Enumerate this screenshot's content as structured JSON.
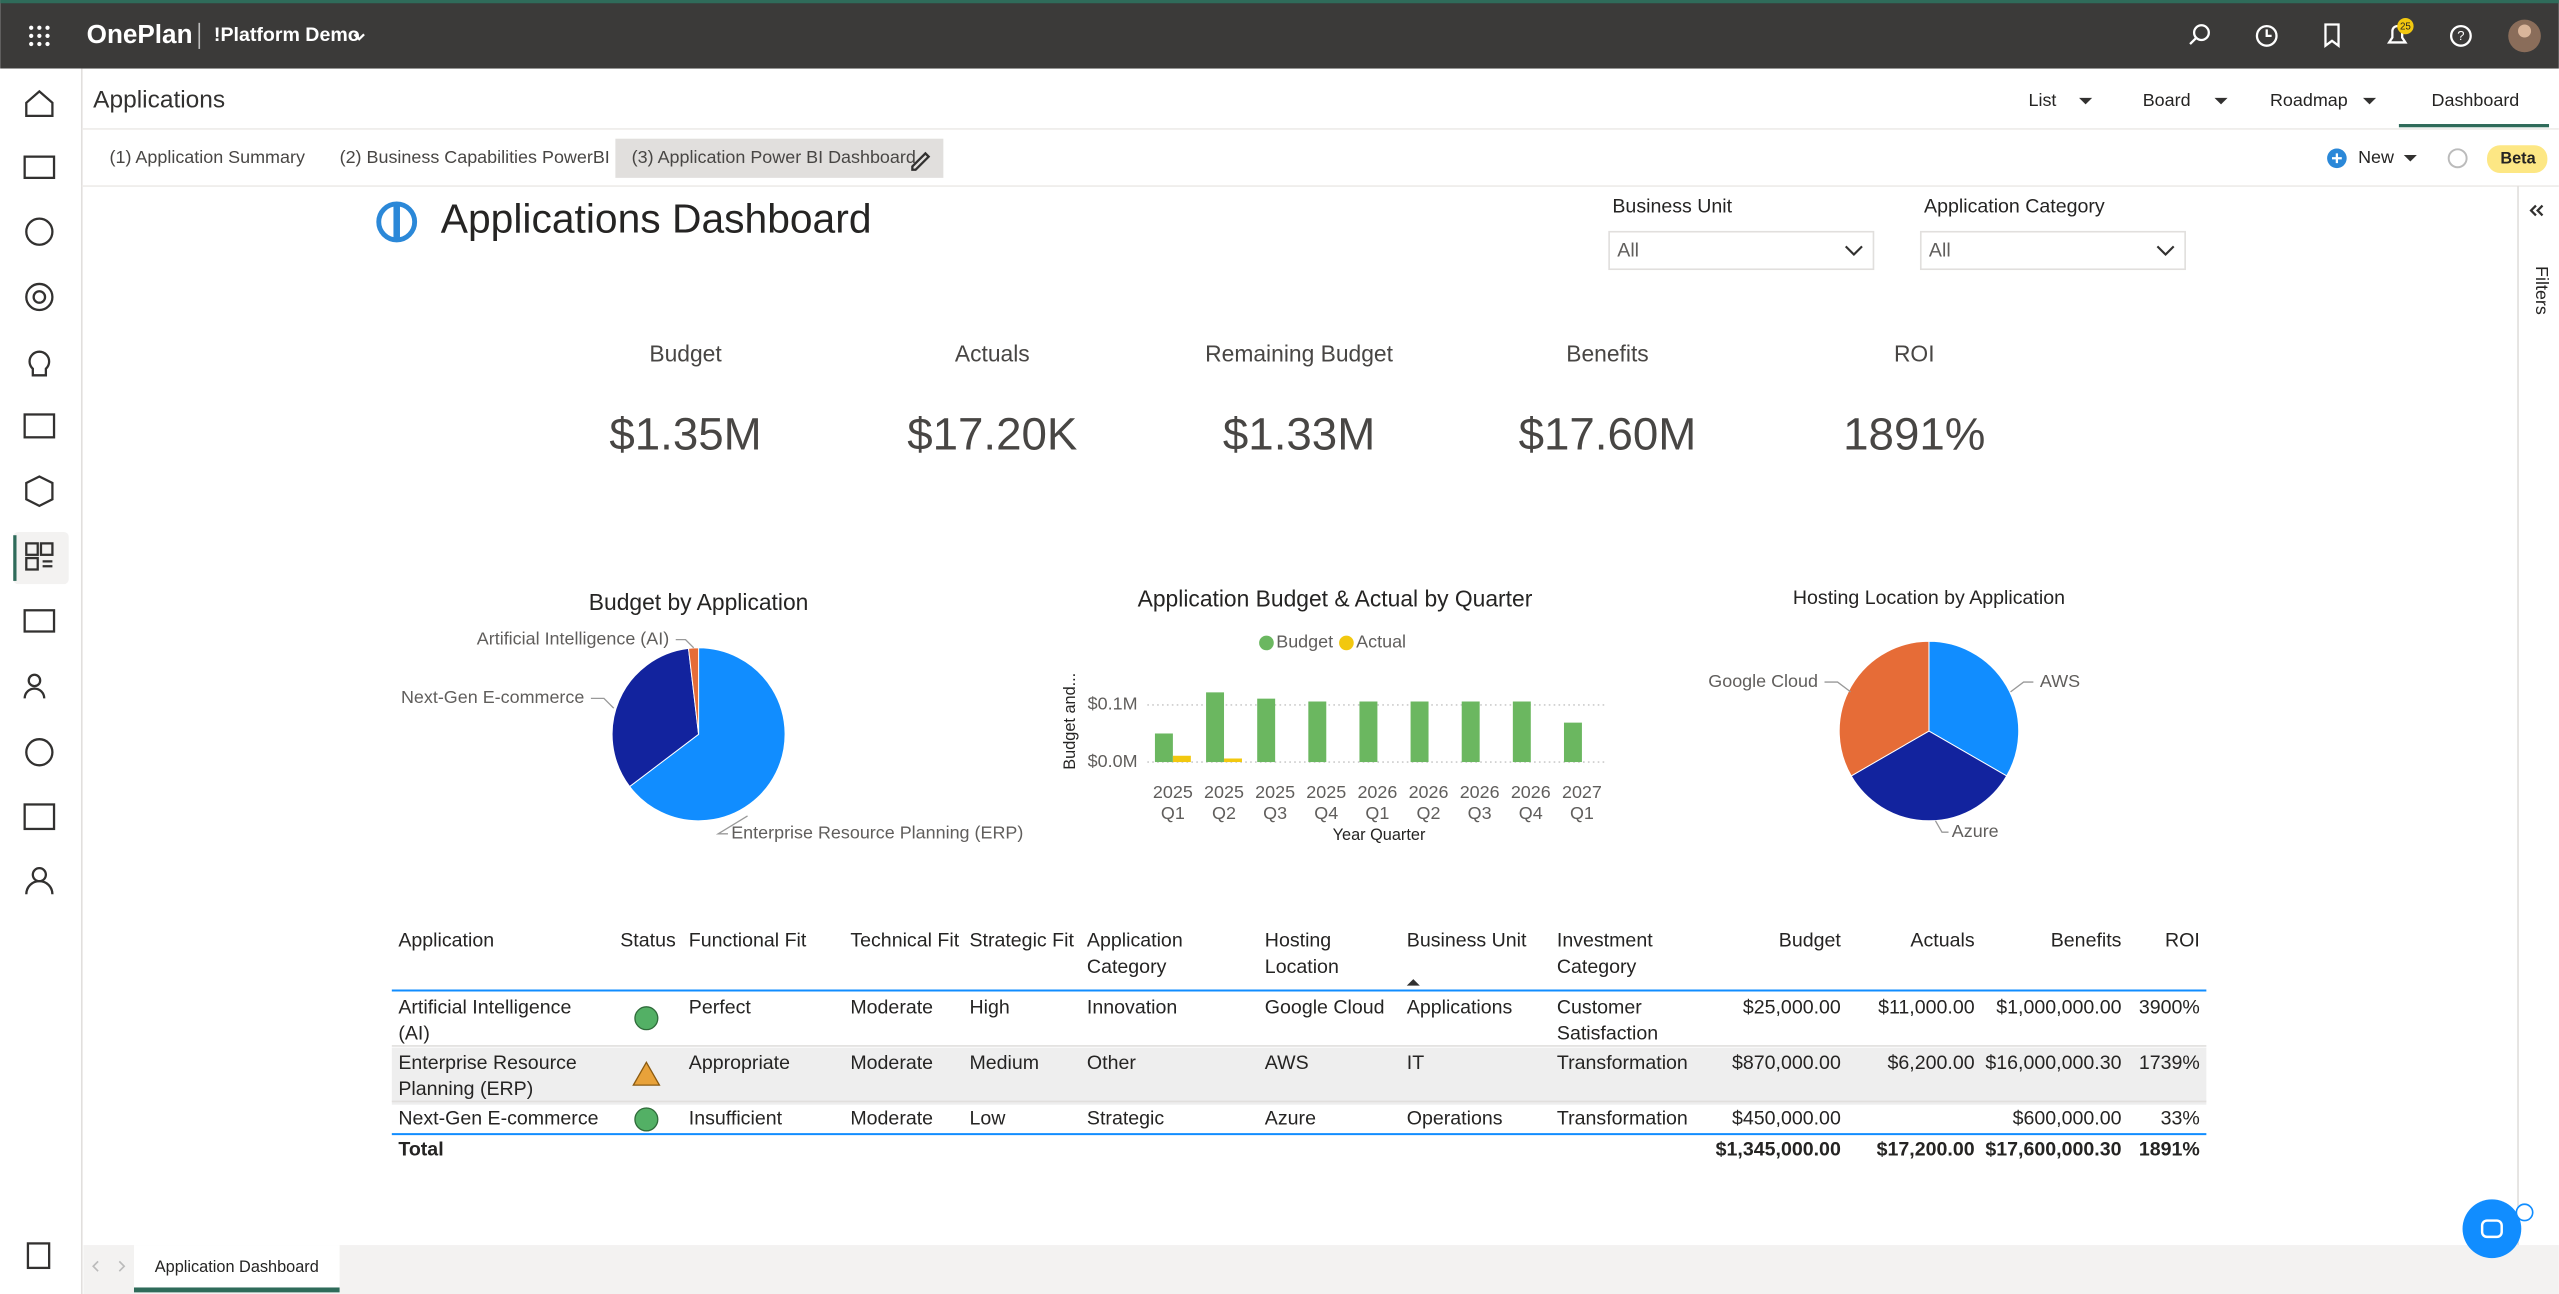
{
  "app_bar": {
    "brand": "OnePlan",
    "workspace": "!Platform Demo",
    "notification_badge": "25"
  },
  "header": {
    "title": "Applications",
    "views": [
      "List",
      "Board",
      "Roadmap",
      "Dashboard"
    ]
  },
  "tabs": [
    "(1) Application Summary",
    "(2) Business Capabilities PowerBI",
    "(3) Application Power BI Dashboard"
  ],
  "toolbar": {
    "new": "New",
    "beta": "Beta"
  },
  "dashboard": {
    "title": "Applications Dashboard",
    "filters": [
      {
        "label": "Business Unit",
        "value": "All"
      },
      {
        "label": "Application Category",
        "value": "All"
      }
    ],
    "kpis": [
      {
        "label": "Budget",
        "value": "$1.35M"
      },
      {
        "label": "Actuals",
        "value": "$17.20K"
      },
      {
        "label": "Remaining Budget",
        "value": "$1.33M"
      },
      {
        "label": "Benefits",
        "value": "$17.60M"
      },
      {
        "label": "ROI",
        "value": "1891%"
      }
    ],
    "charts": [
      {
        "type": "pie",
        "title": "Budget by Application",
        "categories": [
          "Enterprise Resource Planning (ERP)",
          "Next-Gen E-commerce",
          "Artificial Intelligence (AI)"
        ],
        "values": [
          870000,
          450000,
          25000
        ],
        "colors": [
          "#118dff",
          "#12239e",
          "#e66c37"
        ]
      },
      {
        "type": "bar",
        "title": "Application Budget & Actual by Quarter",
        "category_years": [
          "2025",
          "2025",
          "2025",
          "2025",
          "2026",
          "2026",
          "2026",
          "2026",
          "2027"
        ],
        "category_quarters": [
          "Q1",
          "Q2",
          "Q3",
          "Q4",
          "Q1",
          "Q2",
          "Q3",
          "Q4",
          "Q1"
        ],
        "series": [
          {
            "name": "Budget",
            "color": "#6bb760",
            "values": [
              0.05,
              0.122,
              0.111,
              0.106,
              0.106,
              0.106,
              0.106,
              0.106,
              0.069
            ]
          },
          {
            "name": "Actual",
            "color": "#f2c80f",
            "values": [
              0.011,
              0.0062,
              null,
              null,
              null,
              null,
              null,
              null,
              null
            ]
          }
        ],
        "ylim": [
          0,
          0.14
        ],
        "yticks": [
          {
            "value": 0,
            "label": "$0.0M"
          },
          {
            "value": 0.1,
            "label": "$0.1M"
          }
        ],
        "ylabel": "Budget and...",
        "xlabel": "Year Quarter",
        "grid": true
      },
      {
        "type": "pie",
        "title": "Hosting Location by Application",
        "categories": [
          "AWS",
          "Azure",
          "Google Cloud"
        ],
        "values": [
          1,
          1,
          1
        ],
        "colors": [
          "#118dff",
          "#12239e",
          "#e66c37"
        ]
      }
    ],
    "table": {
      "columns": [
        [
          "Application"
        ],
        [
          "Status"
        ],
        [
          "Functional Fit"
        ],
        [
          "Technical Fit"
        ],
        [
          "Strategic Fit"
        ],
        [
          "Application",
          "Category"
        ],
        [
          "Hosting",
          "Location"
        ],
        [
          "Business Unit"
        ],
        [
          "Investment",
          "Category"
        ],
        [
          "Budget"
        ],
        [
          "Actuals"
        ],
        [
          "Benefits"
        ],
        [
          "ROI"
        ]
      ],
      "rows": [
        [
          [
            "Artificial Intelligence",
            "(AI)"
          ],
          "Perfect",
          "Moderate",
          "High",
          "Innovation",
          "Google Cloud",
          "Applications",
          [
            "Customer",
            "Satisfaction"
          ],
          "$25,000.00",
          "$11,000.00",
          "$1,000,000.00",
          "3900%"
        ],
        [
          [
            "Enterprise Resource",
            "Planning (ERP)"
          ],
          "Appropriate",
          "Moderate",
          "Medium",
          "Other",
          "AWS",
          "IT",
          "Transformation",
          "$870,000.00",
          "$6,200.00",
          "$16,000,000.30",
          "1739%"
        ],
        [
          [
            "Next-Gen E-commerce"
          ],
          "Insufficient",
          "Moderate",
          "Low",
          "Strategic",
          "Azure",
          "Operations",
          "Transformation",
          "$450,000.00",
          null,
          "$600,000.00",
          "33%"
        ]
      ],
      "total": [
        "Total",
        "$1,345,000.00",
        "$17,200.00",
        "$17,600,000.30",
        "1891%"
      ]
    }
  },
  "filters_pane": "Filters",
  "page_tabs": [
    "Application Dashboard"
  ]
}
